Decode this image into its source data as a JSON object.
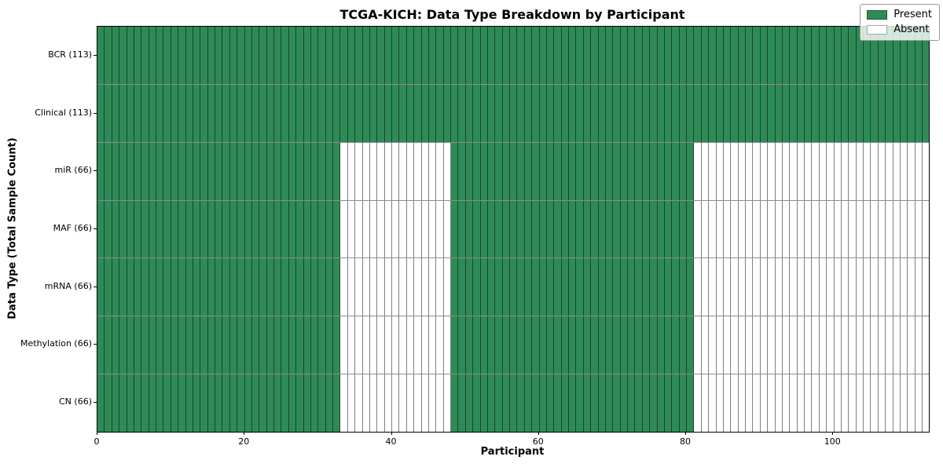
{
  "figure": {
    "title": "TCGA-KICH: Data Type Breakdown by Participant",
    "xlabel": "Participant",
    "ylabel": "Data Type (Total Sample Count)"
  },
  "chart_data": {
    "type": "heatmap",
    "title": "TCGA-KICH: Data Type Breakdown by Participant",
    "xlabel": "Participant",
    "ylabel": "Data Type (Total Sample Count)",
    "xlim": [
      0,
      113
    ],
    "x_ticks": [
      0,
      20,
      40,
      60,
      80,
      100
    ],
    "n_participants": 113,
    "grid": true,
    "legend_position": "upper right",
    "categories": [
      "BCR (113)",
      "Clinical (113)",
      "miR (66)",
      "MAF (66)",
      "mRNA (66)",
      "Methylation (66)",
      "CN (66)"
    ],
    "rows": [
      {
        "label": "BCR (113)",
        "total": 113,
        "present_segments": [
          [
            0,
            113
          ]
        ]
      },
      {
        "label": "Clinical (113)",
        "total": 113,
        "present_segments": [
          [
            0,
            113
          ]
        ]
      },
      {
        "label": "miR (66)",
        "total": 66,
        "present_segments": [
          [
            0,
            33
          ],
          [
            48,
            81
          ]
        ]
      },
      {
        "label": "MAF (66)",
        "total": 66,
        "present_segments": [
          [
            0,
            33
          ],
          [
            48,
            81
          ]
        ]
      },
      {
        "label": "mRNA (66)",
        "total": 66,
        "present_segments": [
          [
            0,
            33
          ],
          [
            48,
            81
          ]
        ]
      },
      {
        "label": "Methylation (66)",
        "total": 66,
        "present_segments": [
          [
            0,
            33
          ],
          [
            48,
            81
          ]
        ]
      },
      {
        "label": "CN (66)",
        "total": 66,
        "present_segments": [
          [
            0,
            33
          ],
          [
            48,
            81
          ]
        ]
      }
    ],
    "legend": [
      {
        "label": "Present",
        "color": "#2e8b57"
      },
      {
        "label": "Absent",
        "color": "#ffffff"
      }
    ],
    "colors": {
      "present": "#2e8b57",
      "absent": "#ffffff",
      "cell_edge": "rgba(0,0,0,0.5)",
      "frame": "#000000"
    }
  }
}
